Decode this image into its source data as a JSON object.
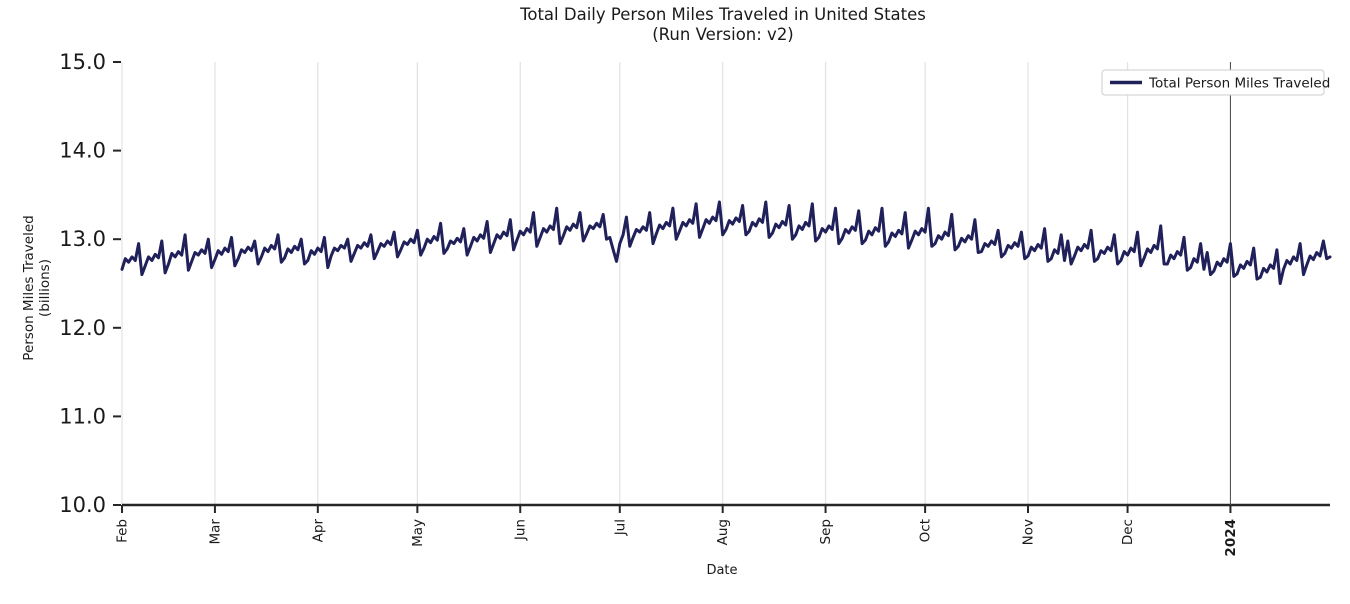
{
  "title": {
    "line1": "Total Daily Person Miles Traveled in United States",
    "line2": "(Run Version: v2)"
  },
  "axes": {
    "xlabel": "Date",
    "ylabel_line1": "Person Miles Traveled",
    "ylabel_line2": "(billions)"
  },
  "legend": {
    "label": "Total Person Miles Traveled",
    "position": "upper right"
  },
  "colors": {
    "series_line": "#20205a",
    "axis": "#262626",
    "grid": "#e2e2e2",
    "year_divider": "#4a4a4a",
    "legend_border": "#cccccc",
    "legend_bg": "#ffffff",
    "text": "#1a1a1a"
  },
  "chart_data": {
    "type": "line",
    "title": "Total Daily Person Miles Traveled in United States (Run Version: v2)",
    "xlabel": "Date",
    "ylabel": "Person Miles Traveled (billions)",
    "ylim": [
      10.0,
      15.0
    ],
    "y_ticks": [
      10.0,
      11.0,
      12.0,
      13.0,
      14.0,
      15.0
    ],
    "grid": "vertical-only",
    "legend_position": "upper right",
    "x_ticks": [
      {
        "label": "Feb",
        "day": 0,
        "bold": false
      },
      {
        "label": "Mar",
        "day": 28,
        "bold": false
      },
      {
        "label": "Apr",
        "day": 59,
        "bold": false
      },
      {
        "label": "May",
        "day": 89,
        "bold": false
      },
      {
        "label": "Jun",
        "day": 120,
        "bold": false
      },
      {
        "label": "Jul",
        "day": 150,
        "bold": false
      },
      {
        "label": "Aug",
        "day": 181,
        "bold": false
      },
      {
        "label": "Sep",
        "day": 212,
        "bold": false
      },
      {
        "label": "Oct",
        "day": 242,
        "bold": false
      },
      {
        "label": "Nov",
        "day": 273,
        "bold": false
      },
      {
        "label": "Dec",
        "day": 303,
        "bold": false
      },
      {
        "label": "2024",
        "day": 334,
        "bold": true
      }
    ],
    "annotations": [
      {
        "type": "vline",
        "day": 334,
        "at_tick_label": "2024"
      }
    ],
    "series": [
      {
        "name": "Total Person Miles Traveled",
        "x_start_day": 0,
        "x_step_days": 1,
        "values": [
          12.66,
          12.78,
          12.74,
          12.8,
          12.76,
          12.95,
          12.6,
          12.7,
          12.8,
          12.76,
          12.83,
          12.79,
          12.98,
          12.62,
          12.72,
          12.84,
          12.8,
          12.86,
          12.82,
          13.05,
          12.65,
          12.75,
          12.85,
          12.82,
          12.88,
          12.84,
          13.0,
          12.68,
          12.77,
          12.87,
          12.83,
          12.9,
          12.86,
          13.02,
          12.7,
          12.78,
          12.88,
          12.85,
          12.91,
          12.87,
          12.98,
          12.72,
          12.8,
          12.9,
          12.86,
          12.93,
          12.89,
          13.05,
          12.74,
          12.79,
          12.89,
          12.85,
          12.92,
          12.88,
          13.0,
          12.72,
          12.76,
          12.87,
          12.83,
          12.9,
          12.86,
          13.02,
          12.68,
          12.81,
          12.9,
          12.87,
          12.93,
          12.9,
          13.0,
          12.75,
          12.84,
          12.93,
          12.9,
          12.96,
          12.92,
          13.05,
          12.78,
          12.86,
          12.95,
          12.92,
          12.98,
          12.94,
          13.08,
          12.8,
          12.88,
          12.97,
          12.94,
          13.0,
          12.96,
          13.1,
          12.82,
          12.9,
          13.0,
          12.96,
          13.03,
          12.99,
          13.18,
          12.84,
          12.89,
          12.98,
          12.95,
          13.01,
          12.97,
          13.12,
          12.82,
          12.92,
          13.02,
          12.98,
          13.05,
          13.01,
          13.2,
          12.85,
          12.95,
          13.05,
          13.01,
          13.08,
          13.04,
          13.22,
          12.88,
          12.99,
          13.09,
          13.05,
          13.12,
          13.08,
          13.3,
          12.92,
          13.02,
          13.12,
          13.08,
          13.15,
          13.11,
          13.35,
          12.95,
          13.04,
          13.14,
          13.1,
          13.17,
          13.13,
          13.3,
          12.98,
          13.06,
          13.15,
          13.12,
          13.18,
          13.14,
          13.28,
          13.0,
          13.02,
          12.88,
          12.75,
          12.95,
          13.05,
          13.25,
          12.92,
          13.02,
          13.11,
          13.08,
          13.14,
          13.1,
          13.3,
          12.95,
          13.06,
          13.16,
          13.12,
          13.19,
          13.15,
          13.35,
          13.0,
          13.09,
          13.19,
          13.15,
          13.22,
          13.18,
          13.4,
          13.02,
          13.12,
          13.22,
          13.18,
          13.25,
          13.21,
          13.42,
          13.05,
          13.11,
          13.21,
          13.17,
          13.24,
          13.2,
          13.38,
          13.05,
          13.09,
          13.19,
          13.15,
          13.23,
          13.19,
          13.42,
          13.02,
          13.07,
          13.17,
          13.13,
          13.2,
          13.16,
          13.38,
          13.0,
          13.05,
          13.15,
          13.11,
          13.19,
          13.15,
          13.4,
          12.98,
          13.02,
          13.12,
          13.08,
          13.15,
          13.11,
          13.35,
          12.95,
          13.01,
          13.11,
          13.07,
          13.14,
          13.1,
          13.32,
          12.95,
          12.99,
          13.09,
          13.05,
          13.13,
          13.09,
          13.35,
          12.92,
          12.97,
          13.07,
          13.03,
          13.1,
          13.06,
          13.3,
          12.9,
          12.99,
          13.09,
          13.05,
          13.12,
          13.08,
          13.35,
          12.92,
          12.95,
          13.04,
          13.0,
          13.08,
          13.04,
          13.28,
          12.88,
          12.92,
          13.01,
          12.97,
          13.04,
          13.0,
          13.22,
          12.85,
          12.86,
          12.95,
          12.92,
          12.98,
          12.94,
          13.1,
          12.8,
          12.84,
          12.93,
          12.9,
          12.96,
          12.92,
          13.08,
          12.78,
          12.81,
          12.91,
          12.87,
          12.94,
          12.9,
          13.12,
          12.75,
          12.78,
          12.88,
          12.84,
          13.05,
          12.76,
          12.98,
          12.72,
          12.81,
          12.91,
          12.87,
          12.94,
          12.9,
          13.1,
          12.75,
          12.78,
          12.87,
          12.84,
          12.91,
          12.87,
          13.05,
          12.72,
          12.76,
          12.86,
          12.82,
          12.9,
          12.86,
          13.08,
          12.7,
          12.79,
          12.89,
          12.85,
          12.93,
          12.89,
          13.15,
          12.72,
          12.72,
          12.82,
          12.78,
          12.86,
          12.82,
          13.02,
          12.65,
          12.68,
          12.78,
          12.74,
          12.95,
          12.66,
          12.85,
          12.6,
          12.64,
          12.74,
          12.7,
          12.78,
          12.74,
          12.95,
          12.58,
          12.61,
          12.71,
          12.67,
          12.75,
          12.71,
          12.9,
          12.55,
          12.57,
          12.67,
          12.63,
          12.71,
          12.67,
          12.88,
          12.5,
          12.66,
          12.76,
          12.72,
          12.8,
          12.76,
          12.95,
          12.6,
          12.71,
          12.81,
          12.77,
          12.85,
          12.81,
          12.98,
          12.78,
          12.8
        ]
      }
    ]
  }
}
